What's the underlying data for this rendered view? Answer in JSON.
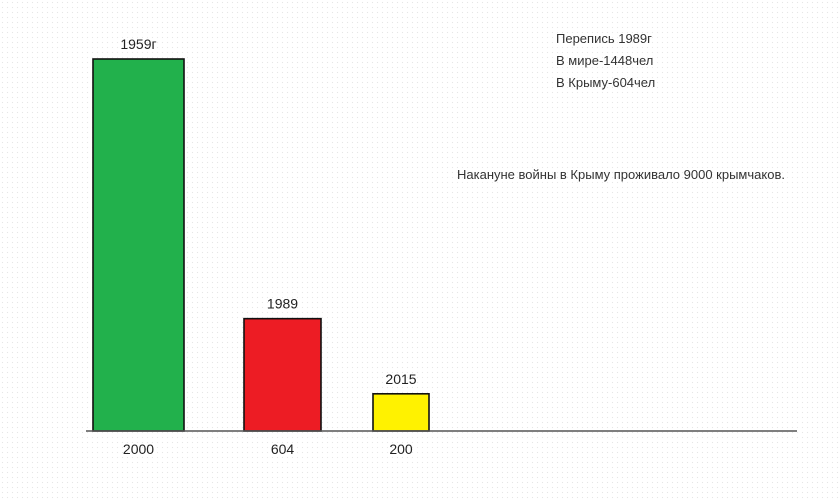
{
  "chart_data": {
    "type": "bar",
    "title": "",
    "xlabel": "",
    "ylabel": "",
    "categories": [
      "1959г",
      "1989",
      "2015"
    ],
    "values": [
      2000,
      604,
      200
    ],
    "value_labels": [
      "2000",
      "604",
      "200"
    ],
    "colors": [
      "#22b14c",
      "#ed1c24",
      "#fff200"
    ],
    "ylim": [
      0,
      2000
    ],
    "grid": false,
    "legend": "none"
  },
  "notes": {
    "census": {
      "line1": "Перепись 1989г",
      "line2": "В мире-1448чел",
      "line3": "В Крыму-604чел"
    },
    "war": "Накануне войны в Крыму проживало 9000 крымчаков."
  }
}
